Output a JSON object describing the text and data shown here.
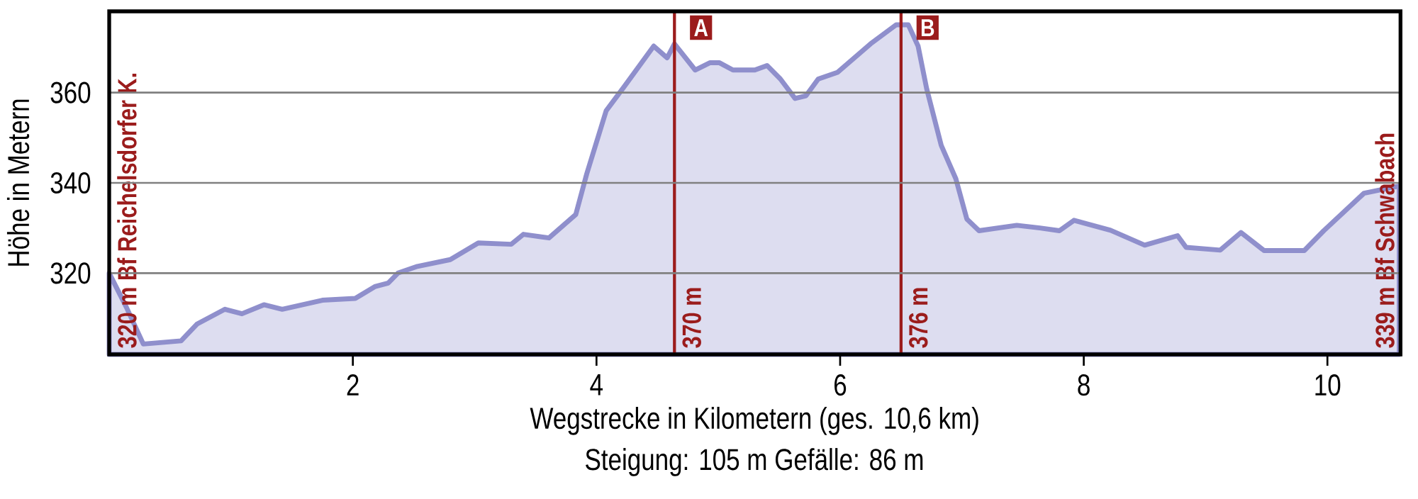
{
  "chart_data": {
    "type": "area",
    "xlabel": "Wegstrecke in Kilometern (ges. 10,6 km)",
    "ylabel": "Höhe in Metern",
    "xlim": [
      0,
      10.6
    ],
    "ylim": [
      302,
      378
    ],
    "xticks": [
      2,
      4,
      6,
      8,
      10
    ],
    "yticks": [
      320,
      340,
      360
    ],
    "grid": "y",
    "series": [
      {
        "color": "#8f8fcc",
        "x": [
          0,
          0.14,
          0.28,
          0.59,
          0.72,
          0.95,
          1.09,
          1.27,
          1.42,
          1.75,
          2.02,
          2.18,
          2.29,
          2.37,
          2.53,
          2.8,
          3.03,
          3.3,
          3.4,
          3.61,
          3.83,
          3.92,
          4.08,
          4.23,
          4.47,
          4.58,
          4.64,
          4.81,
          4.93,
          5.01,
          5.12,
          5.3,
          5.4,
          5.51,
          5.63,
          5.72,
          5.82,
          5.98,
          6.25,
          6.46,
          6.56,
          6.64,
          6.71,
          6.83,
          6.95,
          7.04,
          7.14,
          7.45,
          7.64,
          7.8,
          7.92,
          8.22,
          8.5,
          8.77,
          8.84,
          9.12,
          9.29,
          9.48,
          9.81,
          9.97,
          10.3,
          10.59
        ],
        "values": [
          320,
          312.5,
          304.3,
          305,
          308.7,
          312,
          311,
          313,
          312,
          314,
          314.4,
          317,
          317.8,
          320,
          321.5,
          323,
          326.7,
          326.4,
          328.6,
          327.8,
          333,
          342,
          356,
          361.4,
          370.3,
          367.7,
          370.8,
          365,
          366.6,
          366.6,
          365,
          365,
          366,
          363,
          358.7,
          359.3,
          363,
          364.5,
          370.8,
          375,
          375,
          370.3,
          360.9,
          348.3,
          340.9,
          332,
          329.4,
          330.6,
          330,
          329.4,
          331.7,
          329.5,
          326.2,
          328.3,
          325.7,
          325.1,
          329,
          325,
          325,
          329.4,
          337.7,
          339.3
        ]
      }
    ],
    "ref_lines": [
      {
        "axis": "x",
        "value": 4.64,
        "label": "A",
        "color": "#9b1c1c"
      },
      {
        "axis": "x",
        "value": 6.5,
        "label": "B",
        "color": "#9b1c1c"
      }
    ],
    "annotations": [
      {
        "text": "320 m  Bf Reichelsdorfer K.",
        "x": 0,
        "y": 320
      },
      "370 m",
      "376 m",
      {
        "text": "339 m  Bf Schwabach",
        "x": 10.6,
        "y": 339
      },
      "Steigung: 105 m    Gefälle: 86 m"
    ]
  }
}
